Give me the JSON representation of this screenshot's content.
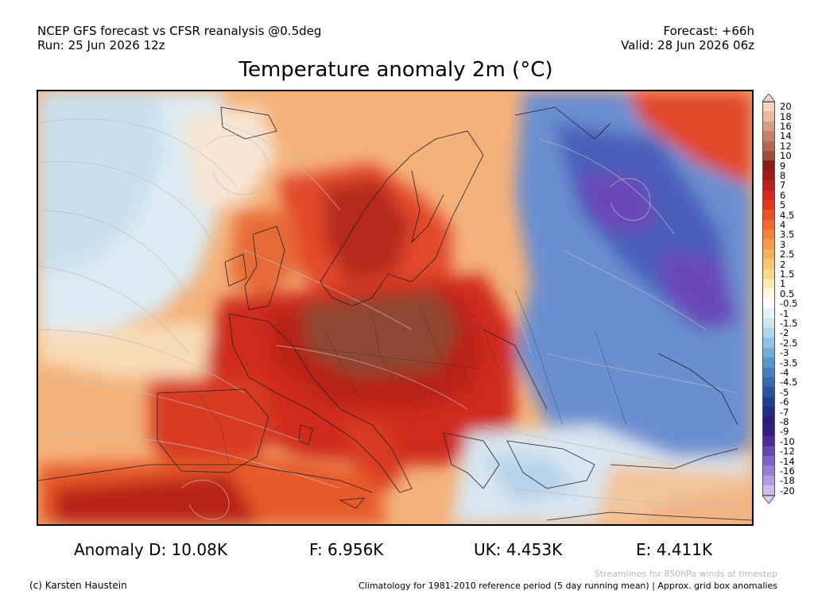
{
  "header": {
    "model_line": "NCEP GFS forecast vs CFSR reanalysis @0.5deg",
    "run_line": "Run: 25 Jun 2026 12z",
    "forecast_line": "Forecast: +66h",
    "valid_line": "Valid: 28 Jun 2026 06z"
  },
  "title": "Temperature anomaly 2m (°C)",
  "colorbar": {
    "ticks": [
      "20",
      "18",
      "16",
      "14",
      "12",
      "10",
      "9",
      "8",
      "7",
      "6",
      "5",
      "4.5",
      "4",
      "3.5",
      "3",
      "2.5",
      "2",
      "1.5",
      "1",
      "0.5",
      "-0.5",
      "-1",
      "-1.5",
      "-2",
      "-2.5",
      "-3",
      "-3.5",
      "-4",
      "-4.5",
      "-5",
      "-6",
      "-7",
      "-8",
      "-9",
      "-10",
      "-12",
      "-14",
      "-16",
      "-18",
      "-20"
    ],
    "colors": [
      "#f6d3c2",
      "#e8b9a3",
      "#d99c85",
      "#c98168",
      "#b5674f",
      "#9c4e39",
      "#8b1b16",
      "#a01c18",
      "#b72219",
      "#cf2b1f",
      "#e0391e",
      "#ec5126",
      "#f26a30",
      "#f5843b",
      "#f79b4a",
      "#f9b05d",
      "#fac472",
      "#fbd68d",
      "#fde7b3",
      "#fff6dc",
      "#ffffff",
      "#e6f2fa",
      "#cde5f3",
      "#b1d6ec",
      "#92c3e2",
      "#73aed7",
      "#5a97ca",
      "#4680bd",
      "#3669ae",
      "#2a549d",
      "#233f8f",
      "#242b82",
      "#2e1d78",
      "#3b1a86",
      "#4f2d9c",
      "#6647b3",
      "#7d62c7",
      "#977fd7",
      "#b29de5",
      "#cbbdf0"
    ],
    "bottom_triangle": "#d8ccf4",
    "top_triangle": "#f6d3c2"
  },
  "anomalies": {
    "d": "Anomaly D: 10.08K",
    "f": "F: 6.956K",
    "uk": "UK: 4.453K",
    "e": "E: 4.411K"
  },
  "footer": {
    "streamlines_note": "Streamlines for 850hPa winds at timestep",
    "copyright": "(c) Karsten Haustein",
    "climatology_note": "Climatology for 1981-2010 reference period (5 day running mean) | Approx. grid box anomalies"
  }
}
